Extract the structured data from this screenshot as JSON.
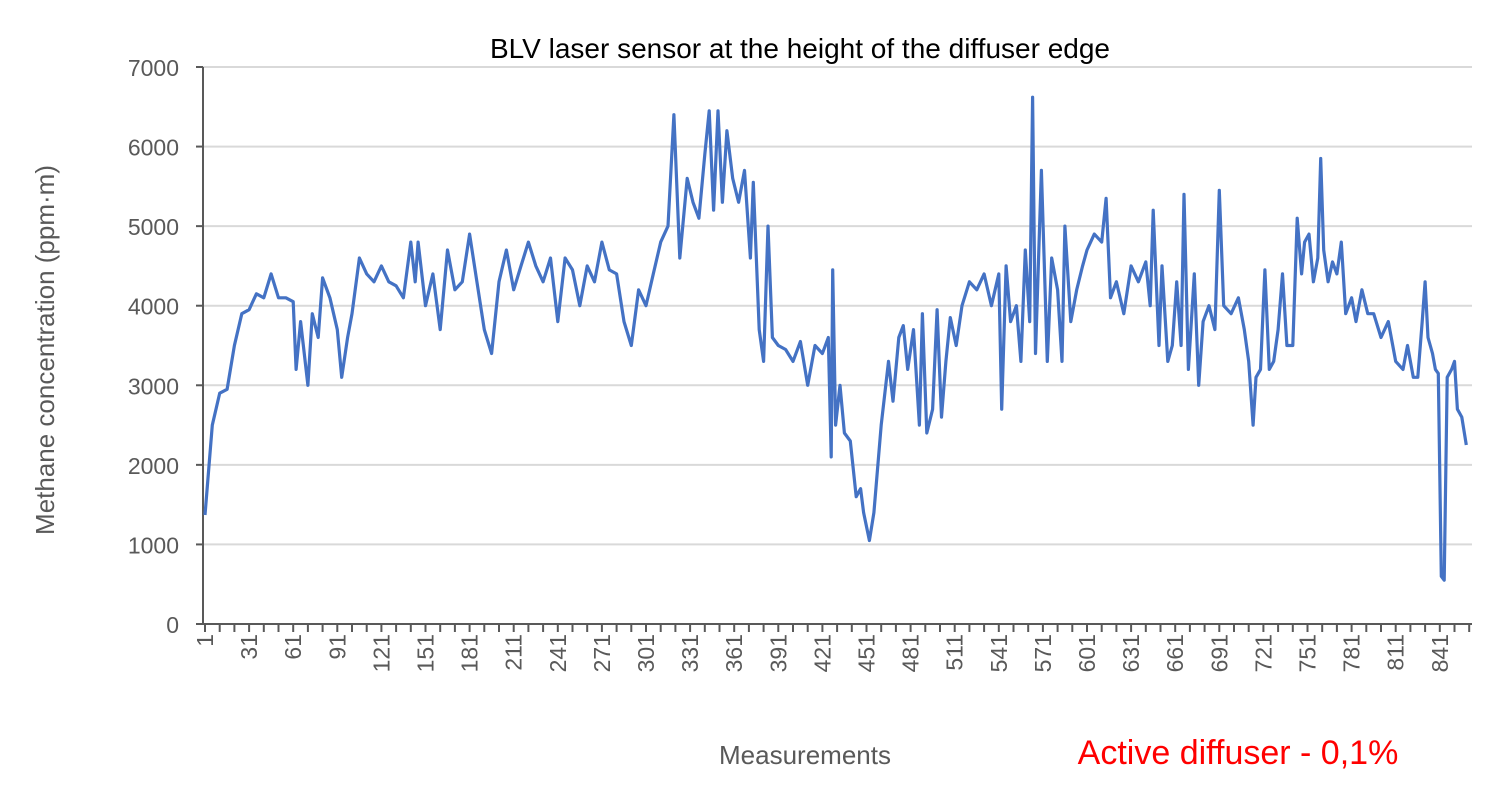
{
  "chart_data": {
    "type": "line",
    "title": "BLV laser sensor at the height of the diffuser edge",
    "xlabel": "Measurements",
    "ylabel": "Methane concentration (ppm·m)",
    "annotation": "Active diffuser - 0,1%",
    "ylim": [
      0,
      7000
    ],
    "yticks": [
      0,
      1000,
      2000,
      3000,
      4000,
      5000,
      6000,
      7000
    ],
    "xlim": [
      1,
      866
    ],
    "xtick_labels": [
      1,
      31,
      61,
      91,
      121,
      151,
      181,
      211,
      241,
      271,
      301,
      331,
      361,
      391,
      421,
      451,
      481,
      511,
      541,
      571,
      601,
      631,
      661,
      691,
      721,
      751,
      781,
      811,
      841
    ],
    "grid": true,
    "series": [
      {
        "name": "Methane concentration",
        "color": "#4472c4",
        "x": [
          1,
          6,
          11,
          16,
          21,
          26,
          31,
          36,
          41,
          46,
          51,
          56,
          61,
          63,
          66,
          71,
          74,
          78,
          81,
          86,
          91,
          94,
          98,
          101,
          106,
          111,
          116,
          121,
          126,
          131,
          136,
          141,
          144,
          146,
          151,
          156,
          161,
          166,
          171,
          176,
          181,
          186,
          191,
          196,
          201,
          206,
          211,
          216,
          221,
          226,
          231,
          236,
          241,
          246,
          251,
          256,
          261,
          266,
          271,
          276,
          281,
          286,
          291,
          296,
          301,
          306,
          311,
          316,
          320,
          324,
          329,
          333,
          337,
          341,
          344,
          347,
          350,
          353,
          356,
          360,
          364,
          368,
          372,
          374,
          378,
          381,
          384,
          387,
          391,
          396,
          401,
          406,
          411,
          416,
          421,
          425,
          427,
          428,
          430,
          433,
          436,
          440,
          444,
          447,
          449,
          453,
          456,
          461,
          466,
          469,
          473,
          476,
          479,
          483,
          487,
          489,
          492,
          496,
          499,
          502,
          505,
          508,
          512,
          516,
          521,
          526,
          531,
          536,
          541,
          543,
          546,
          549,
          553,
          556,
          559,
          562,
          564,
          566,
          570,
          574,
          577,
          581,
          584,
          586,
          590,
          594,
          598,
          601,
          606,
          611,
          614,
          617,
          621,
          626,
          631,
          636,
          641,
          644,
          646,
          650,
          652,
          656,
          659,
          662,
          665,
          667,
          670,
          674,
          677,
          680,
          684,
          688,
          691,
          694,
          699,
          704,
          708,
          711,
          714,
          716,
          719,
          722,
          725,
          728,
          731,
          734,
          737,
          741,
          744,
          747,
          749,
          752,
          755,
          758,
          760,
          762,
          765,
          768,
          771,
          774,
          777,
          781,
          784,
          788,
          792,
          796,
          801,
          806,
          811,
          816,
          819,
          823,
          826,
          829,
          831,
          833,
          836,
          838,
          840,
          842,
          844,
          846,
          849,
          851,
          853,
          856,
          859
        ],
        "y": [
          1370,
          2500,
          2900,
          2950,
          3500,
          3900,
          3950,
          4150,
          4100,
          4400,
          4100,
          4100,
          4050,
          3200,
          3800,
          3000,
          3900,
          3600,
          4350,
          4100,
          3700,
          3100,
          3600,
          3900,
          4600,
          4400,
          4300,
          4500,
          4300,
          4250,
          4100,
          4800,
          4300,
          4800,
          4000,
          4400,
          3700,
          4700,
          4200,
          4300,
          4900,
          4300,
          3700,
          3400,
          4300,
          4700,
          4200,
          4500,
          4800,
          4500,
          4300,
          4600,
          3800,
          4600,
          4450,
          4000,
          4500,
          4300,
          4800,
          4450,
          4400,
          3800,
          3500,
          4200,
          4000,
          4400,
          4800,
          5000,
          6400,
          4600,
          5600,
          5300,
          5100,
          5900,
          6450,
          5200,
          6450,
          5300,
          6200,
          5600,
          5300,
          5700,
          4600,
          5550,
          3700,
          3300,
          5000,
          3600,
          3500,
          3450,
          3300,
          3550,
          3000,
          3500,
          3400,
          3600,
          2100,
          4450,
          2500,
          3000,
          2400,
          2300,
          1600,
          1700,
          1400,
          1050,
          1400,
          2500,
          3300,
          2800,
          3600,
          3750,
          3200,
          3700,
          2500,
          3900,
          2400,
          2700,
          3950,
          2600,
          3300,
          3850,
          3500,
          4000,
          4300,
          4200,
          4400,
          4000,
          4400,
          2700,
          4500,
          3800,
          4000,
          3300,
          4700,
          3800,
          6620,
          3400,
          5700,
          3300,
          4600,
          4200,
          3300,
          5000,
          3800,
          4200,
          4500,
          4700,
          4900,
          4800,
          5350,
          4100,
          4300,
          3900,
          4500,
          4300,
          4550,
          4000,
          5200,
          3500,
          4500,
          3300,
          3500,
          4300,
          3500,
          5400,
          3200,
          4400,
          3000,
          3800,
          4000,
          3700,
          5450,
          4000,
          3900,
          4100,
          3700,
          3300,
          2500,
          3100,
          3200,
          4450,
          3200,
          3300,
          3700,
          4400,
          3500,
          3500,
          5100,
          4400,
          4800,
          4900,
          4300,
          4600,
          5850,
          4700,
          4300,
          4550,
          4400,
          4800,
          3900,
          4100,
          3800,
          4200,
          3900,
          3900,
          3600,
          3800,
          3300,
          3200,
          3500,
          3100,
          3100,
          3800,
          4300,
          3600,
          3400,
          3200,
          3150,
          600,
          550,
          3100,
          3200,
          3300,
          2700,
          2600,
          2250
        ]
      }
    ]
  }
}
